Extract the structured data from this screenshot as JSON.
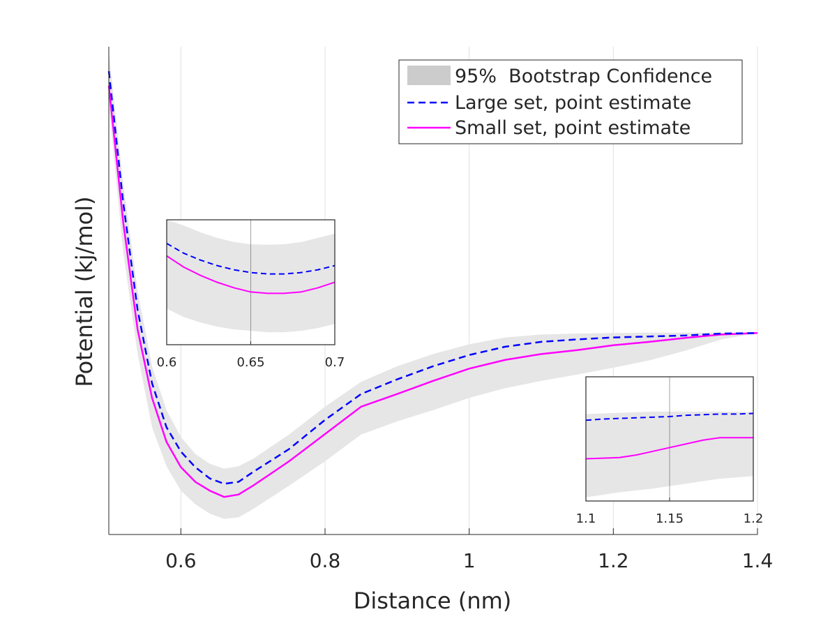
{
  "chart_data": {
    "type": "line",
    "title": "",
    "xlabel": "Distance (nm)",
    "ylabel": "Potential (kj/mol)",
    "xlim": [
      0.5,
      1.4
    ],
    "ylim": [
      0,
      1
    ],
    "xticks": [
      0.6,
      0.8,
      1.0,
      1.2,
      1.4
    ],
    "xtick_labels": [
      "0.6",
      "0.8",
      "1",
      "1.2",
      "1.4"
    ],
    "grid": "vertical",
    "legend_position": "top-right",
    "legend": {
      "band": "95%  Bootstrap Confidence",
      "large": "Large set, point estimate",
      "small": "Small set, point estimate"
    },
    "colors": {
      "band": "#e6e6e6",
      "legend_band": "#cccccc",
      "large": "#0000ff",
      "small": "#ff00ff",
      "axis": "#262626",
      "grid": "#dfdfdf"
    },
    "x": [
      0.5,
      0.52,
      0.54,
      0.56,
      0.58,
      0.6,
      0.62,
      0.64,
      0.66,
      0.68,
      0.7,
      0.75,
      0.8,
      0.85,
      0.9,
      0.95,
      1.0,
      1.05,
      1.1,
      1.15,
      1.2,
      1.25,
      1.3,
      1.35,
      1.4
    ],
    "series": [
      {
        "name": "Large set, point estimate",
        "style": "dashed",
        "values": [
          0.95,
          0.68,
          0.46,
          0.31,
          0.22,
          0.17,
          0.138,
          0.115,
          0.104,
          0.108,
          0.128,
          0.175,
          0.235,
          0.288,
          0.318,
          0.345,
          0.368,
          0.385,
          0.395,
          0.4,
          0.404,
          0.406,
          0.408,
          0.412,
          0.413
        ]
      },
      {
        "name": "Small set, point estimate",
        "style": "solid",
        "values": [
          0.92,
          0.64,
          0.42,
          0.28,
          0.19,
          0.138,
          0.108,
          0.09,
          0.077,
          0.082,
          0.1,
          0.15,
          0.206,
          0.262,
          0.288,
          0.315,
          0.34,
          0.358,
          0.37,
          0.378,
          0.388,
          0.395,
          0.403,
          0.41,
          0.413
        ]
      }
    ],
    "band": {
      "name": "95%  Bootstrap Confidence",
      "lower": [
        0.88,
        0.58,
        0.37,
        0.22,
        0.14,
        0.09,
        0.062,
        0.043,
        0.032,
        0.035,
        0.052,
        0.1,
        0.15,
        0.205,
        0.232,
        0.255,
        0.28,
        0.3,
        0.315,
        0.328,
        0.342,
        0.357,
        0.377,
        0.4,
        0.413
      ],
      "upper": [
        0.99,
        0.72,
        0.5,
        0.345,
        0.255,
        0.2,
        0.165,
        0.145,
        0.135,
        0.14,
        0.155,
        0.205,
        0.262,
        0.313,
        0.345,
        0.37,
        0.39,
        0.404,
        0.41,
        0.412,
        0.413,
        0.414,
        0.414,
        0.414,
        0.413
      ]
    },
    "insets": [
      {
        "name": "inset-left",
        "xlim": [
          0.6,
          0.7
        ],
        "xticks": [
          0.6,
          0.65,
          0.7
        ],
        "xtick_labels": [
          "0.6",
          "0.65",
          "0.7"
        ],
        "ylim": [
          0.55,
          1.0
        ],
        "x": [
          0.6,
          0.61,
          0.62,
          0.63,
          0.64,
          0.65,
          0.66,
          0.67,
          0.68,
          0.69,
          0.7
        ],
        "large": [
          0.915,
          0.88,
          0.855,
          0.835,
          0.82,
          0.81,
          0.805,
          0.805,
          0.81,
          0.82,
          0.835
        ],
        "small": [
          0.87,
          0.83,
          0.8,
          0.775,
          0.755,
          0.74,
          0.735,
          0.735,
          0.74,
          0.755,
          0.775
        ],
        "lower": [
          0.68,
          0.65,
          0.63,
          0.615,
          0.605,
          0.6,
          0.595,
          0.595,
          0.6,
          0.61,
          0.625
        ],
        "upper": [
          1.0,
          0.98,
          0.955,
          0.935,
          0.92,
          0.912,
          0.91,
          0.912,
          0.92,
          0.935,
          0.95
        ]
      },
      {
        "name": "inset-right",
        "xlim": [
          1.1,
          1.2
        ],
        "xticks": [
          1.1,
          1.15,
          1.2
        ],
        "xtick_labels": [
          "1.1",
          "1.15",
          "1.2"
        ],
        "ylim": [
          0.0,
          1.0
        ],
        "x": [
          1.1,
          1.11,
          1.12,
          1.13,
          1.14,
          1.15,
          1.16,
          1.17,
          1.18,
          1.19,
          1.2
        ],
        "large": [
          0.65,
          0.66,
          0.665,
          0.67,
          0.675,
          0.68,
          0.69,
          0.695,
          0.7,
          0.7,
          0.705
        ],
        "small": [
          0.34,
          0.345,
          0.35,
          0.37,
          0.4,
          0.43,
          0.46,
          0.49,
          0.51,
          0.51,
          0.51
        ],
        "lower": [
          0.03,
          0.05,
          0.07,
          0.085,
          0.1,
          0.12,
          0.14,
          0.16,
          0.18,
          0.19,
          0.2
        ],
        "upper": [
          0.7,
          0.705,
          0.71,
          0.715,
          0.72,
          0.72,
          0.72,
          0.72,
          0.72,
          0.72,
          0.715
        ]
      }
    ]
  }
}
